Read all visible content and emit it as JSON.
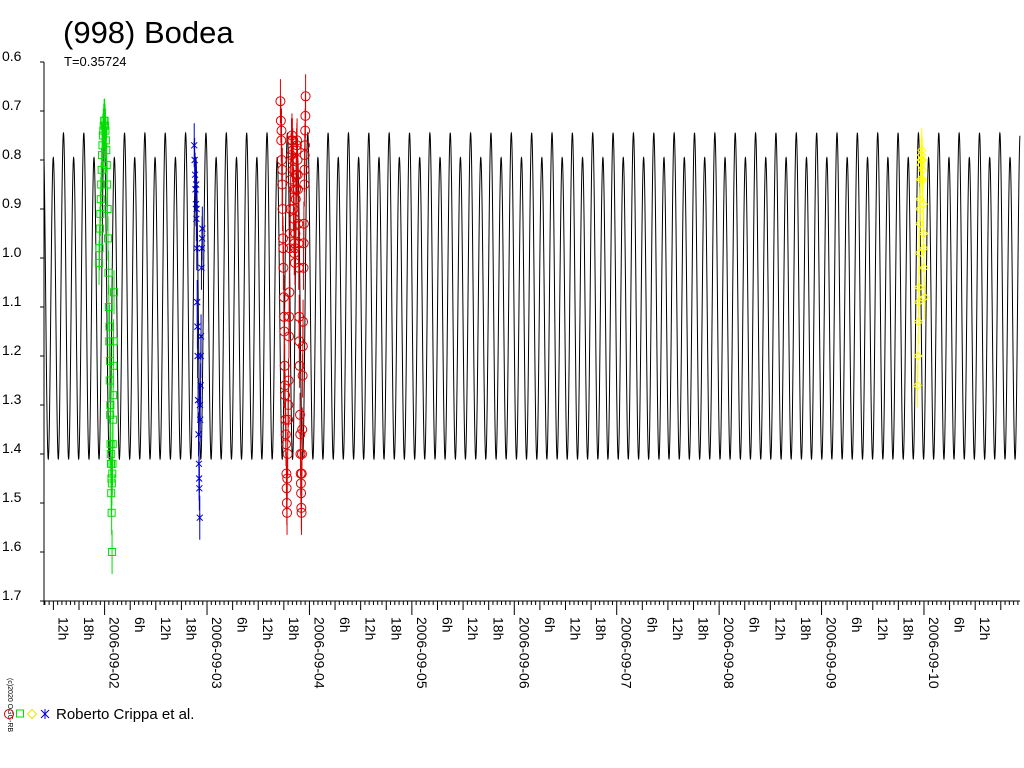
{
  "chart_data": {
    "type": "scatter",
    "title": "(998) Bodea",
    "subtitle": "T=0.35724",
    "credit": "(c)2020 OGG-RB",
    "legend_label": "Roberto Crippa et al.",
    "ylim": [
      0.6,
      1.7
    ],
    "y_inverted": true,
    "yticks": [
      "0.6",
      "0.7",
      "0.8",
      "0.9",
      "1.0",
      "1.1",
      "1.2",
      "1.3",
      "1.4",
      "1.5",
      "1.6",
      "1.7"
    ],
    "xlim_hours": [
      -14.2,
      214.5
    ],
    "x_origin": "2006-09-02",
    "xticks": [
      {
        "h": -12,
        "label": "12h"
      },
      {
        "h": -6,
        "label": "18h"
      },
      {
        "h": 0,
        "label": "2006-09-02"
      },
      {
        "h": 6,
        "label": "6h"
      },
      {
        "h": 12,
        "label": "12h"
      },
      {
        "h": 18,
        "label": "18h"
      },
      {
        "h": 24,
        "label": "2006-09-03"
      },
      {
        "h": 30,
        "label": "6h"
      },
      {
        "h": 36,
        "label": "12h"
      },
      {
        "h": 42,
        "label": "18h"
      },
      {
        "h": 48,
        "label": "2006-09-04"
      },
      {
        "h": 54,
        "label": "6h"
      },
      {
        "h": 60,
        "label": "12h"
      },
      {
        "h": 66,
        "label": "18h"
      },
      {
        "h": 72,
        "label": "2006-09-05"
      },
      {
        "h": 78,
        "label": "6h"
      },
      {
        "h": 84,
        "label": "12h"
      },
      {
        "h": 90,
        "label": "18h"
      },
      {
        "h": 96,
        "label": "2006-09-06"
      },
      {
        "h": 102,
        "label": "6h"
      },
      {
        "h": 108,
        "label": "12h"
      },
      {
        "h": 114,
        "label": "18h"
      },
      {
        "h": 120,
        "label": "2006-09-07"
      },
      {
        "h": 126,
        "label": "6h"
      },
      {
        "h": 132,
        "label": "12h"
      },
      {
        "h": 138,
        "label": "18h"
      },
      {
        "h": 144,
        "label": "2006-09-08"
      },
      {
        "h": 150,
        "label": "6h"
      },
      {
        "h": 156,
        "label": "12h"
      },
      {
        "h": 162,
        "label": "18h"
      },
      {
        "h": 168,
        "label": "2006-09-09"
      },
      {
        "h": 174,
        "label": "6h"
      },
      {
        "h": 180,
        "label": "12h"
      },
      {
        "h": 186,
        "label": "18h"
      },
      {
        "h": 192,
        "label": "2006-09-10"
      },
      {
        "h": 198,
        "label": "6h"
      },
      {
        "h": 204,
        "label": "12h"
      }
    ],
    "model_curve": {
      "name": "",
      "color": "#000000",
      "period_hours": 4.77,
      "max_bright_mag": 0.745,
      "min_bright_mag": 0.795,
      "faint_mag": 1.41,
      "phase_ref_hour": -0.1
    },
    "series": [
      {
        "name": "",
        "color": "#00dd00",
        "marker": "square",
        "points": [
          [
            -1.3,
            1.01
          ],
          [
            -1.2,
            0.98
          ],
          [
            -1.1,
            0.94
          ],
          [
            -1.0,
            0.91
          ],
          [
            -0.9,
            0.88
          ],
          [
            -0.8,
            0.85
          ],
          [
            -0.7,
            0.82
          ],
          [
            -0.6,
            0.79
          ],
          [
            -0.5,
            0.77
          ],
          [
            -0.4,
            0.75
          ],
          [
            -0.3,
            0.74
          ],
          [
            -0.2,
            0.73
          ],
          [
            -0.1,
            0.72
          ],
          [
            0.0,
            0.72
          ],
          [
            0.1,
            0.73
          ],
          [
            0.2,
            0.74
          ],
          [
            0.3,
            0.76
          ],
          [
            0.4,
            0.78
          ],
          [
            0.5,
            0.81
          ],
          [
            0.6,
            0.85
          ],
          [
            0.7,
            0.9
          ],
          [
            0.8,
            0.96
          ],
          [
            0.9,
            1.03
          ],
          [
            1.0,
            1.1
          ],
          [
            1.1,
            1.17
          ],
          [
            1.2,
            1.25
          ],
          [
            1.3,
            1.32
          ],
          [
            1.4,
            1.38
          ],
          [
            1.5,
            1.42
          ],
          [
            1.6,
            1.45
          ],
          [
            1.7,
            1.46
          ],
          [
            1.8,
            1.44
          ],
          [
            1.9,
            1.38
          ],
          [
            2.0,
            1.28
          ],
          [
            2.1,
            1.17
          ],
          [
            2.2,
            1.07
          ],
          [
            1.65,
            1.52
          ],
          [
            1.75,
            1.6
          ],
          [
            1.55,
            1.48
          ],
          [
            1.45,
            1.4
          ],
          [
            1.35,
            1.3
          ],
          [
            1.25,
            1.21
          ],
          [
            1.15,
            1.14
          ],
          [
            2.05,
            1.22
          ],
          [
            1.95,
            1.33
          ],
          [
            1.85,
            1.42
          ]
        ]
      },
      {
        "name": "",
        "color": "#0000cc",
        "marker": "star",
        "points": [
          [
            21.0,
            0.77
          ],
          [
            21.1,
            0.8
          ],
          [
            21.2,
            0.83
          ],
          [
            21.3,
            0.86
          ],
          [
            21.4,
            0.89
          ],
          [
            21.5,
            0.92
          ],
          [
            21.6,
            0.98
          ],
          [
            21.7,
            1.09
          ],
          [
            21.8,
            1.2
          ],
          [
            21.9,
            1.29
          ],
          [
            22.0,
            1.36
          ],
          [
            22.1,
            1.42
          ],
          [
            22.2,
            1.47
          ],
          [
            22.3,
            1.53
          ],
          [
            22.4,
            1.33
          ],
          [
            22.5,
            1.26
          ],
          [
            22.6,
            1.16
          ],
          [
            22.7,
            1.02
          ],
          [
            22.8,
            0.98
          ],
          [
            22.9,
            0.94
          ],
          [
            21.45,
            0.85
          ],
          [
            21.55,
            0.9
          ],
          [
            21.75,
            1.14
          ],
          [
            22.15,
            1.45
          ],
          [
            22.35,
            1.3
          ],
          [
            22.55,
            1.2
          ],
          [
            22.85,
            0.96
          ]
        ]
      },
      {
        "name": "",
        "color": "#dd0000",
        "marker": "circle",
        "points": [
          [
            41.2,
            0.68
          ],
          [
            41.3,
            0.72
          ],
          [
            41.4,
            0.76
          ],
          [
            41.5,
            0.8
          ],
          [
            41.6,
            0.85
          ],
          [
            41.7,
            0.9
          ],
          [
            41.8,
            0.96
          ],
          [
            41.9,
            1.02
          ],
          [
            42.0,
            1.08
          ],
          [
            42.1,
            1.15
          ],
          [
            42.2,
            1.22
          ],
          [
            42.3,
            1.28
          ],
          [
            42.4,
            1.33
          ],
          [
            42.5,
            1.38
          ],
          [
            42.6,
            1.44
          ],
          [
            42.7,
            1.5
          ],
          [
            42.8,
            1.45
          ],
          [
            42.9,
            1.4
          ],
          [
            43.0,
            1.33
          ],
          [
            43.1,
            1.25
          ],
          [
            43.2,
            1.16
          ],
          [
            43.3,
            1.07
          ],
          [
            43.4,
            0.98
          ],
          [
            43.5,
            0.9
          ],
          [
            43.6,
            0.84
          ],
          [
            43.7,
            0.79
          ],
          [
            43.8,
            0.76
          ],
          [
            43.9,
            0.75
          ],
          [
            44.0,
            0.76
          ],
          [
            44.1,
            0.78
          ],
          [
            44.2,
            0.82
          ],
          [
            44.3,
            0.86
          ],
          [
            44.4,
            0.92
          ],
          [
            44.5,
            0.97
          ],
          [
            44.6,
            1.01
          ],
          [
            44.7,
            0.95
          ],
          [
            44.8,
            0.88
          ],
          [
            44.9,
            0.83
          ],
          [
            45.0,
            0.78
          ],
          [
            45.1,
            0.76
          ],
          [
            45.2,
            0.8
          ],
          [
            45.3,
            0.86
          ],
          [
            45.4,
            0.93
          ],
          [
            45.5,
            1.02
          ],
          [
            45.6,
            1.12
          ],
          [
            45.7,
            1.22
          ],
          [
            45.8,
            1.32
          ],
          [
            45.9,
            1.4
          ],
          [
            46.0,
            1.46
          ],
          [
            46.1,
            1.51
          ],
          [
            46.2,
            1.44
          ],
          [
            46.3,
            1.35
          ],
          [
            46.4,
            1.24
          ],
          [
            46.5,
            1.13
          ],
          [
            46.6,
            1.02
          ],
          [
            46.7,
            0.93
          ],
          [
            46.8,
            0.85
          ],
          [
            46.9,
            0.79
          ],
          [
            47.0,
            0.74
          ],
          [
            47.1,
            0.67
          ],
          [
            41.45,
            0.74
          ],
          [
            41.65,
            0.82
          ],
          [
            41.85,
            0.98
          ],
          [
            42.05,
            1.12
          ],
          [
            42.25,
            1.26
          ],
          [
            42.45,
            1.36
          ],
          [
            42.65,
            1.47
          ],
          [
            42.75,
            1.52
          ],
          [
            43.05,
            1.3
          ],
          [
            43.25,
            1.12
          ],
          [
            43.45,
            0.95
          ],
          [
            44.05,
            0.8
          ],
          [
            44.25,
            0.9
          ],
          [
            44.45,
            0.99
          ],
          [
            44.65,
            0.98
          ],
          [
            44.85,
            0.86
          ],
          [
            45.05,
            0.77
          ],
          [
            45.25,
            0.83
          ],
          [
            45.45,
            0.97
          ],
          [
            45.65,
            1.17
          ],
          [
            45.85,
            1.36
          ],
          [
            45.95,
            1.44
          ],
          [
            46.05,
            1.48
          ],
          [
            46.25,
            1.4
          ],
          [
            46.45,
            1.18
          ],
          [
            46.65,
            0.97
          ],
          [
            46.85,
            0.82
          ],
          [
            46.95,
            0.77
          ],
          [
            47.05,
            0.71
          ],
          [
            46.15,
            1.52
          ]
        ]
      },
      {
        "name": "",
        "color": "#ffff00",
        "marker": "diamond",
        "points": [
          [
            190.5,
            1.26
          ],
          [
            190.6,
            1.2
          ],
          [
            190.7,
            1.13
          ],
          [
            190.8,
            1.06
          ],
          [
            190.9,
            0.99
          ],
          [
            191.0,
            0.93
          ],
          [
            191.1,
            0.88
          ],
          [
            191.2,
            0.84
          ],
          [
            191.3,
            0.81
          ],
          [
            191.4,
            0.79
          ],
          [
            191.5,
            0.78
          ],
          [
            191.6,
            0.8
          ],
          [
            191.7,
            0.84
          ],
          [
            191.8,
            0.89
          ],
          [
            191.9,
            0.95
          ],
          [
            192.0,
            1.02
          ],
          [
            192.1,
            1.08
          ],
          [
            190.75,
            1.09
          ],
          [
            191.05,
            0.9
          ],
          [
            191.35,
            0.8
          ],
          [
            191.65,
            0.82
          ],
          [
            191.95,
            0.98
          ]
        ]
      }
    ]
  }
}
